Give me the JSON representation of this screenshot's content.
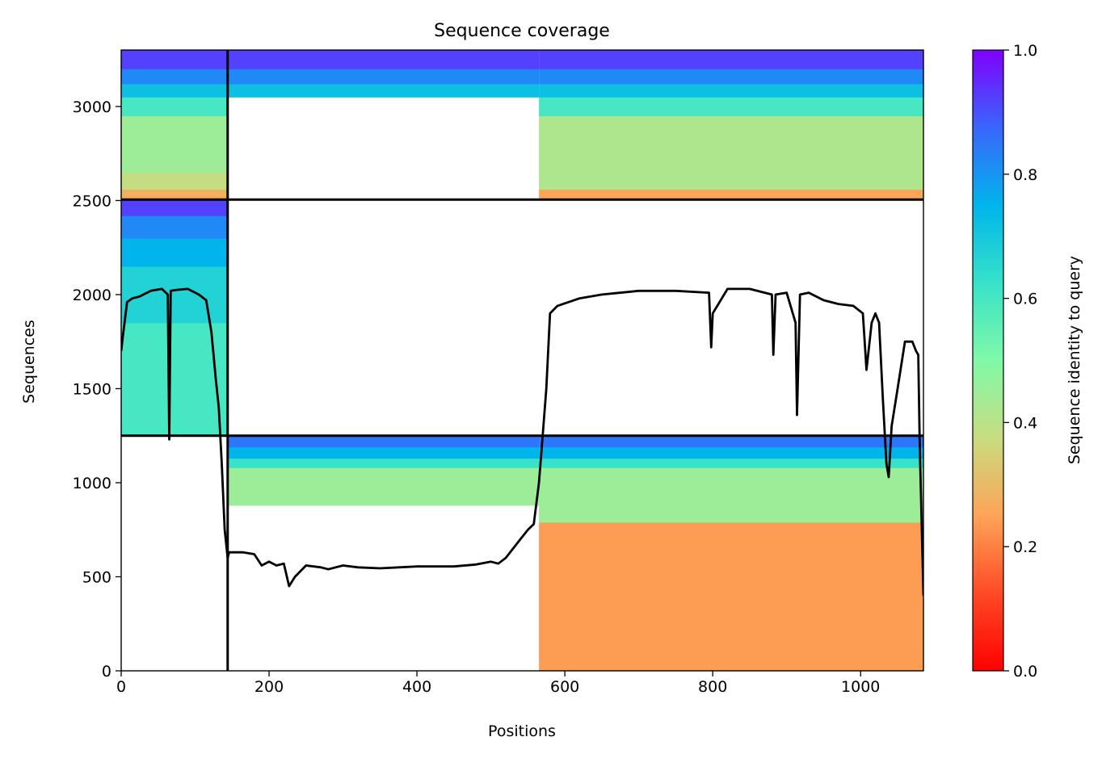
{
  "chart_data": {
    "type": "heatmap",
    "title": "Sequence coverage",
    "xlabel": "Positions",
    "ylabel": "Sequences",
    "xlim": [
      0,
      1085
    ],
    "ylim": [
      0,
      3300
    ],
    "x_ticks": [
      0,
      200,
      400,
      600,
      800,
      1000
    ],
    "y_ticks": [
      0,
      500,
      1000,
      1500,
      2000,
      2500,
      3000
    ],
    "colorbar": {
      "label": "Sequence identity to query",
      "range": [
        0.0,
        1.0
      ],
      "ticks": [
        "0.0",
        "0.2",
        "0.4",
        "0.6",
        "0.8",
        "1.0"
      ],
      "colormap": "rainbow (red to violet)"
    },
    "divider_rows": [
      1250,
      2505
    ],
    "divider_position": 144,
    "blocks": [
      {
        "name": "block-top-left",
        "x_range": [
          0,
          144
        ],
        "y_range": [
          2505,
          3300
        ],
        "identity_bands": [
          [
            2505,
            2525,
            0.25
          ],
          [
            2525,
            2560,
            0.28
          ],
          [
            2560,
            2650,
            0.38
          ],
          [
            2650,
            2950,
            0.45
          ],
          [
            2950,
            3050,
            0.6
          ],
          [
            3050,
            3120,
            0.72
          ],
          [
            3120,
            3200,
            0.82
          ],
          [
            3200,
            3300,
            0.92
          ]
        ]
      },
      {
        "name": "block-top-right-c",
        "x_range": [
          144,
          565
        ],
        "y_range": [
          3050,
          3300
        ],
        "identity_bands": [
          [
            3050,
            3120,
            0.72
          ],
          [
            3120,
            3200,
            0.82
          ],
          [
            3200,
            3300,
            0.92
          ]
        ]
      },
      {
        "name": "block-top-right-d",
        "x_range": [
          565,
          1085
        ],
        "y_range": [
          2505,
          3300
        ],
        "identity_bands": [
          [
            2505,
            2560,
            0.25
          ],
          [
            2560,
            2950,
            0.42
          ],
          [
            2950,
            3050,
            0.6
          ],
          [
            3050,
            3120,
            0.72
          ],
          [
            3120,
            3200,
            0.82
          ],
          [
            3200,
            3300,
            0.92
          ]
        ]
      },
      {
        "name": "block-mid-left",
        "x_range": [
          0,
          144
        ],
        "y_range": [
          1250,
          2505
        ],
        "identity_bands": [
          [
            1250,
            1850,
            0.6
          ],
          [
            1850,
            2150,
            0.67
          ],
          [
            2150,
            2300,
            0.75
          ],
          [
            2300,
            2420,
            0.82
          ],
          [
            2420,
            2505,
            0.92
          ]
        ]
      },
      {
        "name": "block-bottom-c",
        "x_range": [
          144,
          565
        ],
        "y_range": [
          880,
          1250
        ],
        "identity_bands": [
          [
            880,
            1080,
            0.45
          ],
          [
            1080,
            1130,
            0.62
          ],
          [
            1130,
            1190,
            0.75
          ],
          [
            1190,
            1250,
            0.85
          ]
        ]
      },
      {
        "name": "block-bottom-d",
        "x_range": [
          565,
          1085
        ],
        "y_range": [
          0,
          1250
        ],
        "identity_bands": [
          [
            0,
            790,
            0.24
          ],
          [
            790,
            1080,
            0.45
          ],
          [
            1080,
            1130,
            0.62
          ],
          [
            1130,
            1190,
            0.75
          ],
          [
            1190,
            1250,
            0.85
          ]
        ]
      }
    ],
    "coverage_line": {
      "x": [
        0,
        3,
        8,
        15,
        25,
        40,
        55,
        63,
        65,
        67,
        75,
        90,
        105,
        115,
        122,
        128,
        132,
        136,
        140,
        144,
        146,
        150,
        165,
        180,
        190,
        200,
        210,
        220,
        227,
        235,
        250,
        270,
        280,
        300,
        320,
        350,
        400,
        450,
        480,
        500,
        510,
        520,
        530,
        540,
        550,
        558,
        565,
        570,
        575,
        580,
        590,
        620,
        650,
        700,
        750,
        795,
        798,
        800,
        820,
        850,
        880,
        882,
        885,
        900,
        912,
        914,
        918,
        930,
        950,
        970,
        990,
        1003,
        1008,
        1015,
        1020,
        1025,
        1030,
        1035,
        1038,
        1042,
        1050,
        1060,
        1070,
        1075,
        1078,
        1080,
        1085
      ],
      "y": [
        1700,
        1800,
        1960,
        1980,
        1990,
        2020,
        2030,
        2000,
        1230,
        2020,
        2025,
        2030,
        2000,
        1970,
        1800,
        1550,
        1400,
        1100,
        750,
        600,
        630,
        630,
        630,
        620,
        560,
        580,
        560,
        570,
        450,
        500,
        560,
        550,
        540,
        560,
        550,
        545,
        555,
        555,
        565,
        580,
        570,
        600,
        650,
        700,
        750,
        780,
        1000,
        1250,
        1500,
        1900,
        1940,
        1980,
        2000,
        2020,
        2020,
        2010,
        1720,
        1900,
        2030,
        2030,
        2000,
        1680,
        2000,
        2010,
        1850,
        1360,
        2000,
        2010,
        1970,
        1950,
        1940,
        1900,
        1600,
        1850,
        1900,
        1850,
        1450,
        1100,
        1030,
        1300,
        1500,
        1750,
        1750,
        1700,
        1680,
        1200,
        400
      ]
    }
  }
}
